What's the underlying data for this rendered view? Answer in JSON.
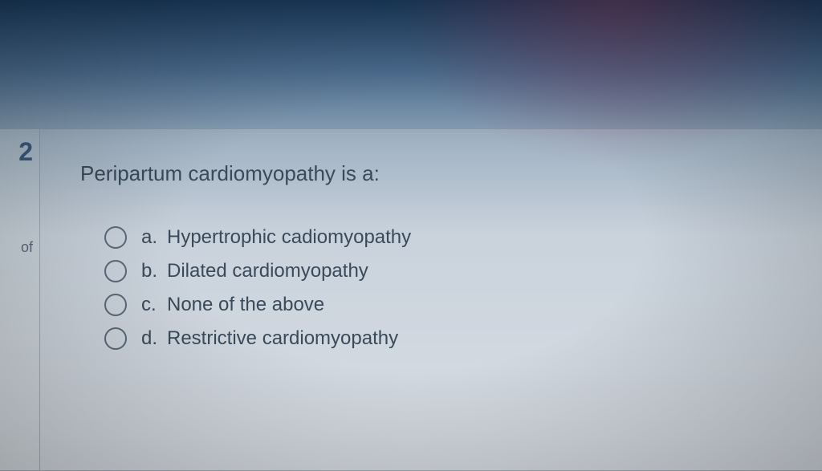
{
  "sidebar": {
    "question_number": "2",
    "label_fragment": "of"
  },
  "question": {
    "text": "Peripartum cardiomyopathy is a:",
    "options": [
      {
        "letter": "a.",
        "text": "Hypertrophic cadiomyopathy"
      },
      {
        "letter": "b.",
        "text": "Dilated cardiomyopathy"
      },
      {
        "letter": "c.",
        "text": "None of the above"
      },
      {
        "letter": "d.",
        "text": "Restrictive cardiomyopathy"
      }
    ]
  },
  "style": {
    "background_gradient_top": "#1a3a5c",
    "background_gradient_bottom": "#d8dee4",
    "text_color": "#3a4a5a",
    "question_num_color": "#3a5a7c",
    "radio_border_color": "#5a6a7a",
    "panel_border_color": "rgba(120,130,140,0.5)",
    "question_fontsize": 26,
    "option_fontsize": 24,
    "number_fontsize": 32
  }
}
